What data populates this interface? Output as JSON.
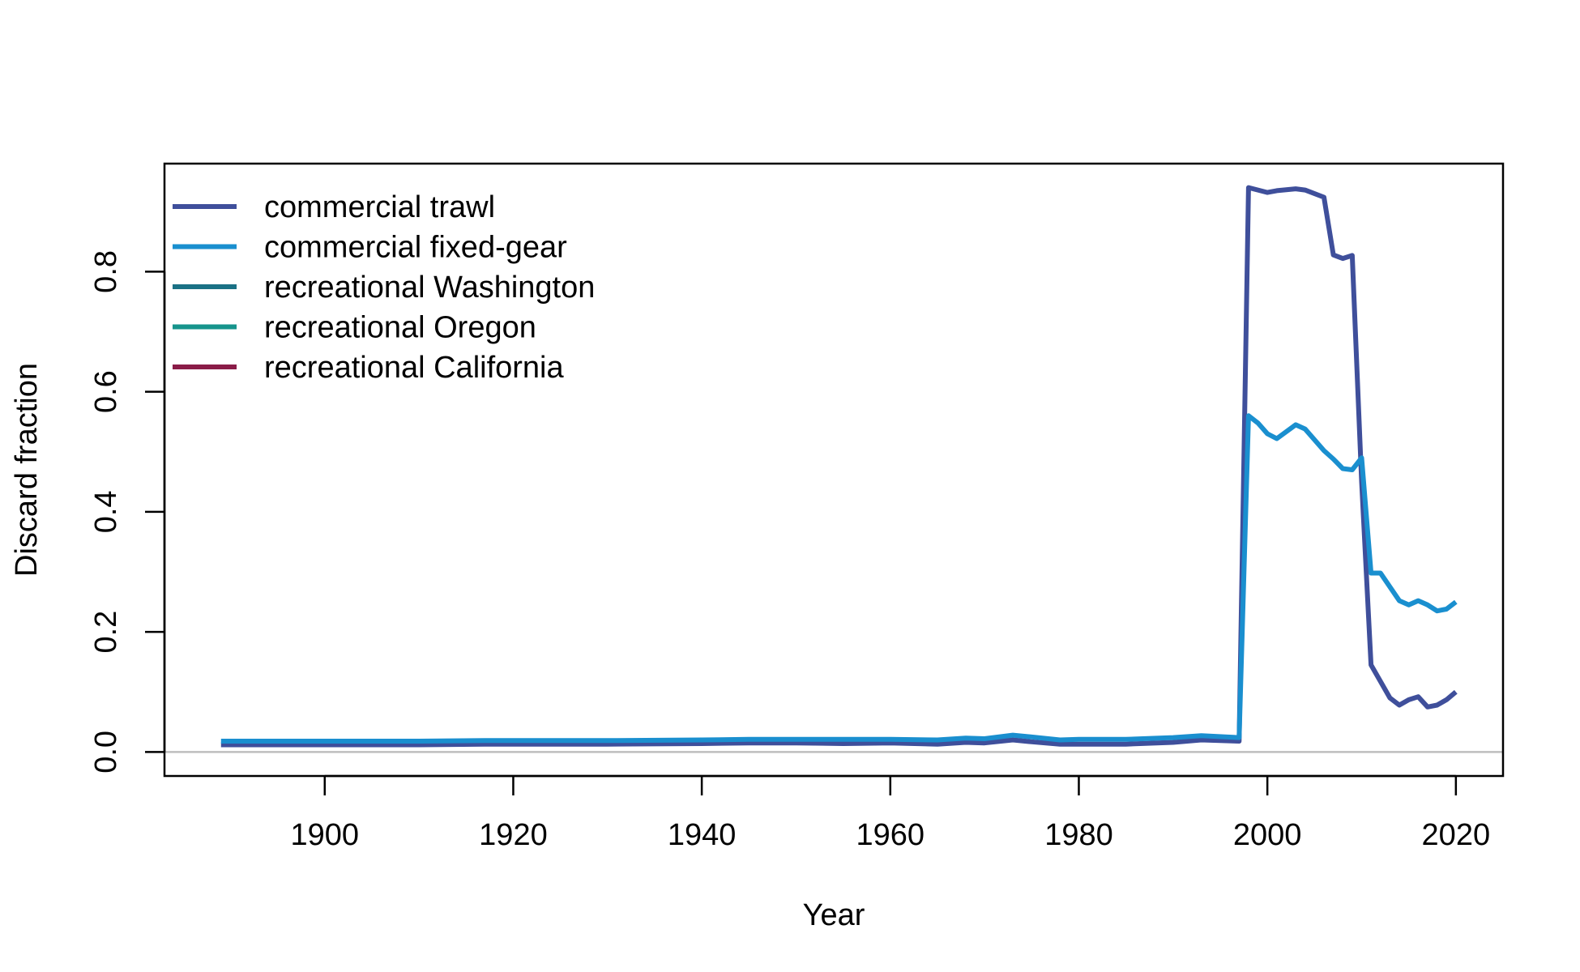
{
  "chart_data": {
    "type": "line",
    "title": "",
    "xlabel": "Year",
    "ylabel": "Discard fraction",
    "xlim": [
      1883,
      2025
    ],
    "ylim": [
      -0.04,
      0.98
    ],
    "xticks": [
      1900,
      1920,
      1940,
      1960,
      1980,
      2000,
      2020
    ],
    "yticks": [
      0.0,
      0.2,
      0.4,
      0.6,
      0.8
    ],
    "xtick_labels": [
      "1900",
      "1920",
      "1940",
      "1960",
      "1980",
      "2000",
      "2020"
    ],
    "ytick_labels": [
      "0.0",
      "0.2",
      "0.4",
      "0.6",
      "0.8"
    ],
    "reference_line": {
      "y": 0.0,
      "color": "#bebebe"
    },
    "legend_position": "top-left",
    "grid": false,
    "series": [
      {
        "name": "commercial trawl",
        "color": "#3f4f9b",
        "x": [
          1889,
          1900,
          1910,
          1917,
          1920,
          1930,
          1940,
          1945,
          1950,
          1955,
          1960,
          1965,
          1968,
          1970,
          1973,
          1975,
          1978,
          1980,
          1985,
          1990,
          1993,
          1997,
          1998,
          2000,
          2001,
          2003,
          2004,
          2006,
          2007,
          2008,
          2009,
          2010,
          2011,
          2013,
          2014,
          2015,
          2016,
          2017,
          2018,
          2019,
          2020
        ],
        "values": [
          0.012,
          0.012,
          0.012,
          0.013,
          0.013,
          0.013,
          0.014,
          0.015,
          0.015,
          0.014,
          0.015,
          0.013,
          0.016,
          0.015,
          0.02,
          0.017,
          0.013,
          0.013,
          0.013,
          0.016,
          0.02,
          0.018,
          0.94,
          0.932,
          0.935,
          0.938,
          0.936,
          0.924,
          0.828,
          0.822,
          0.827,
          0.45,
          0.145,
          0.09,
          0.078,
          0.087,
          0.092,
          0.075,
          0.078,
          0.087,
          0.1
        ]
      },
      {
        "name": "commercial fixed-gear",
        "color": "#1a8fcf",
        "x": [
          1889,
          1900,
          1910,
          1917,
          1920,
          1930,
          1940,
          1945,
          1950,
          1955,
          1960,
          1965,
          1968,
          1970,
          1973,
          1975,
          1978,
          1980,
          1985,
          1990,
          1993,
          1997,
          1998,
          1999,
          2000,
          2001,
          2003,
          2004,
          2006,
          2007,
          2008,
          2009,
          2010,
          2011,
          2012,
          2014,
          2015,
          2016,
          2017,
          2018,
          2019,
          2020
        ],
        "values": [
          0.018,
          0.018,
          0.018,
          0.019,
          0.019,
          0.019,
          0.02,
          0.021,
          0.021,
          0.021,
          0.021,
          0.02,
          0.023,
          0.022,
          0.028,
          0.025,
          0.02,
          0.021,
          0.021,
          0.024,
          0.027,
          0.024,
          0.56,
          0.548,
          0.53,
          0.522,
          0.545,
          0.538,
          0.502,
          0.488,
          0.472,
          0.47,
          0.49,
          0.298,
          0.298,
          0.252,
          0.245,
          0.252,
          0.245,
          0.235,
          0.238,
          0.25
        ]
      },
      {
        "name": "recreational Washington",
        "color": "#1a7185",
        "x": [],
        "values": []
      },
      {
        "name": "recreational Oregon",
        "color": "#16948c",
        "x": [],
        "values": []
      },
      {
        "name": "recreational California",
        "color": "#8a1c48",
        "x": [],
        "values": []
      }
    ]
  }
}
